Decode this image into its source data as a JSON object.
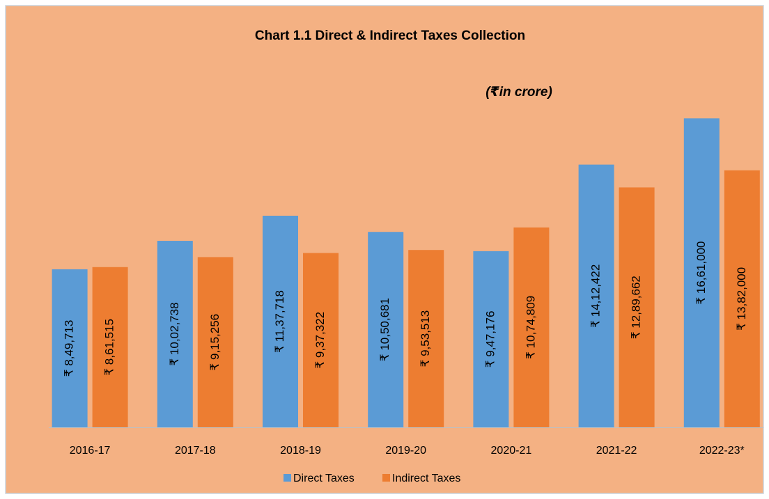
{
  "chart_data": {
    "type": "bar",
    "title": "Chart 1.1 Direct & Indirect Taxes Collection",
    "subtitle": "(₹in crore)",
    "categories": [
      "2016-17",
      "2017-18",
      "2018-19",
      "2019-20",
      "2020-21",
      "2021-22",
      "2022-23*"
    ],
    "series": [
      {
        "name": "Direct Taxes",
        "color": "#5b9bd5",
        "values": [
          849713,
          1002738,
          1137718,
          1050681,
          947176,
          1412422,
          1661000
        ],
        "value_labels": [
          "₹ 8,49,713",
          "₹ 10,02,738",
          "₹ 11,37,718",
          "₹ 10,50,681",
          "₹ 9,47,176",
          "₹ 14,12,422",
          "₹ 16,61,000"
        ]
      },
      {
        "name": "Indirect Taxes",
        "color": "#ed7d31",
        "values": [
          861515,
          915256,
          937322,
          953513,
          1074809,
          1289662,
          1382000
        ],
        "value_labels": [
          "₹ 8,61,515",
          "₹ 9,15,256",
          "₹ 9,37,322",
          "₹ 9,53,513",
          "₹ 10,74,809",
          "₹ 12,89,662",
          "₹ 13,82,000"
        ]
      }
    ],
    "ylim": [
      0,
      1800000
    ],
    "background": "#f4b183"
  }
}
